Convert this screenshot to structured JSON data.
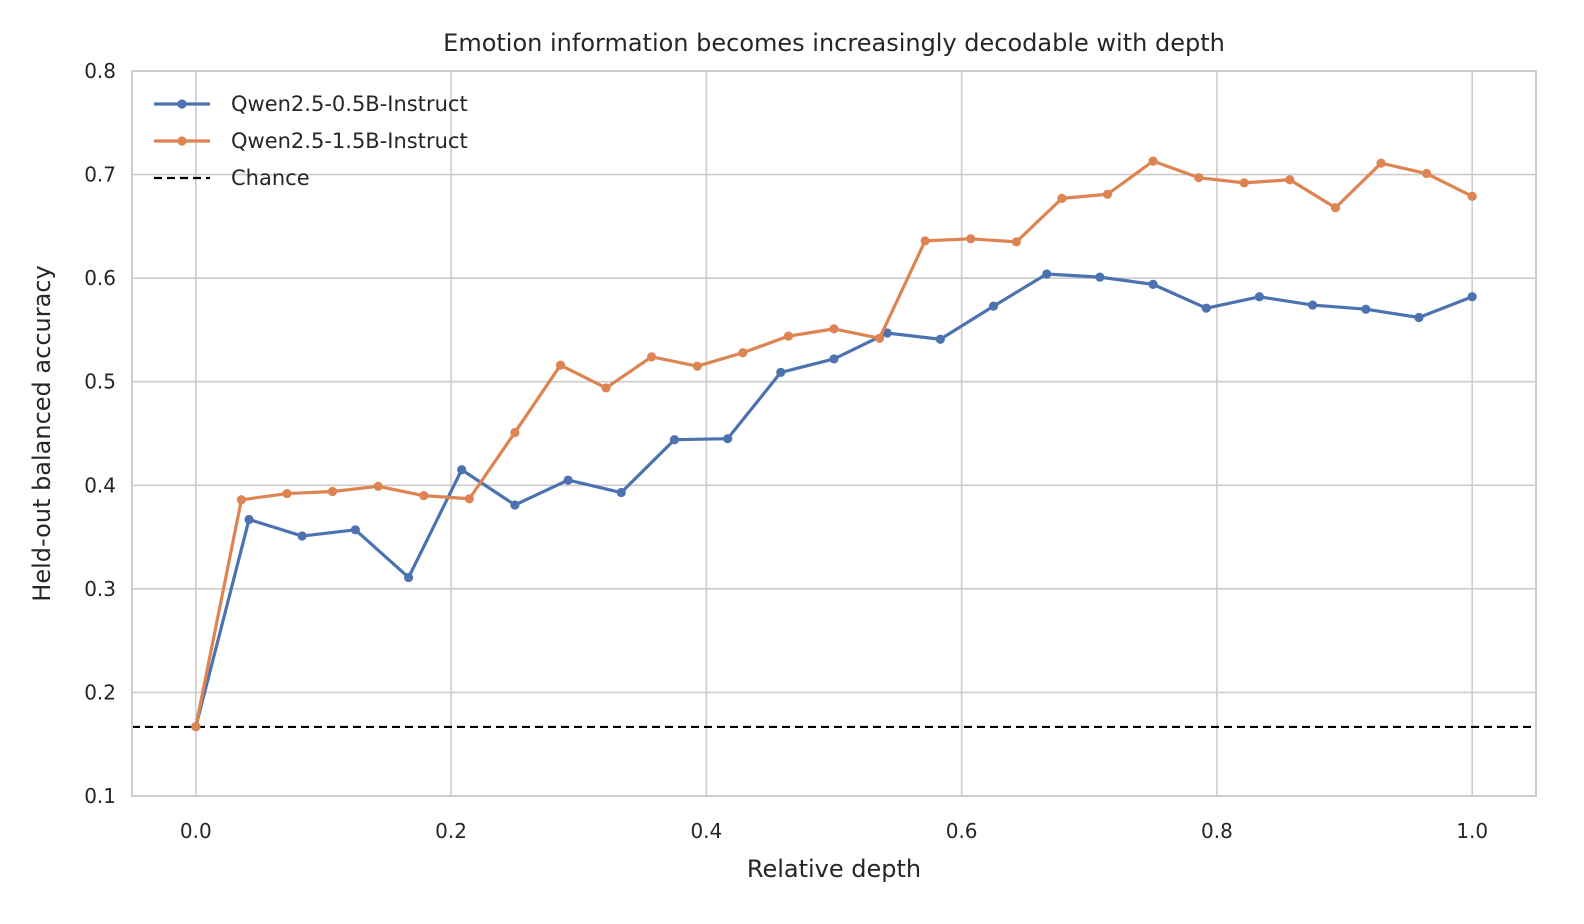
{
  "chart_data": {
    "type": "line",
    "title": "Emotion information becomes increasingly decodable with depth",
    "xlabel": "Relative depth",
    "ylabel": "Held-out balanced accuracy",
    "xlim": [
      -0.05,
      1.05
    ],
    "ylim": [
      0.1,
      0.8
    ],
    "xticks": [
      0.0,
      0.2,
      0.4,
      0.6,
      0.8,
      1.0
    ],
    "xtick_labels": [
      "0.0",
      "0.2",
      "0.4",
      "0.6",
      "0.8",
      "1.0"
    ],
    "yticks": [
      0.1,
      0.2,
      0.3,
      0.4,
      0.5,
      0.6,
      0.7,
      0.8
    ],
    "ytick_labels": [
      "0.1",
      "0.2",
      "0.3",
      "0.4",
      "0.5",
      "0.6",
      "0.7",
      "0.8"
    ],
    "grid": true,
    "legend_position": "top-left",
    "series": [
      {
        "name": "Qwen2.5-0.5B-Instruct",
        "color": "#4c72b0",
        "x": [
          0.0,
          0.0417,
          0.0833,
          0.125,
          0.1667,
          0.2083,
          0.25,
          0.2917,
          0.3333,
          0.375,
          0.4167,
          0.4583,
          0.5,
          0.5417,
          0.5833,
          0.625,
          0.6667,
          0.7083,
          0.75,
          0.7917,
          0.8333,
          0.875,
          0.9167,
          0.9583,
          1.0
        ],
        "y": [
          0.167,
          0.367,
          0.351,
          0.357,
          0.311,
          0.415,
          0.381,
          0.405,
          0.393,
          0.444,
          0.445,
          0.509,
          0.522,
          0.547,
          0.541,
          0.573,
          0.604,
          0.601,
          0.594,
          0.571,
          0.582,
          0.574,
          0.57,
          0.562,
          0.582
        ]
      },
      {
        "name": "Qwen2.5-1.5B-Instruct",
        "color": "#dd8452",
        "x": [
          0.0,
          0.0357,
          0.0714,
          0.1071,
          0.1429,
          0.1786,
          0.2143,
          0.25,
          0.2857,
          0.3214,
          0.3571,
          0.3929,
          0.4286,
          0.4643,
          0.5,
          0.5357,
          0.5714,
          0.6071,
          0.6429,
          0.6786,
          0.7143,
          0.75,
          0.7857,
          0.8214,
          0.8571,
          0.8929,
          0.9286,
          0.9643,
          1.0
        ],
        "y": [
          0.167,
          0.386,
          0.392,
          0.394,
          0.399,
          0.39,
          0.387,
          0.451,
          0.516,
          0.494,
          0.524,
          0.515,
          0.528,
          0.544,
          0.551,
          0.542,
          0.636,
          0.638,
          0.635,
          0.677,
          0.681,
          0.713,
          0.697,
          0.692,
          0.695,
          0.668,
          0.711,
          0.701,
          0.679
        ]
      }
    ],
    "reference_lines": [
      {
        "name": "Chance",
        "y": 0.1667,
        "style": "dashed",
        "color": "#000000"
      }
    ]
  }
}
